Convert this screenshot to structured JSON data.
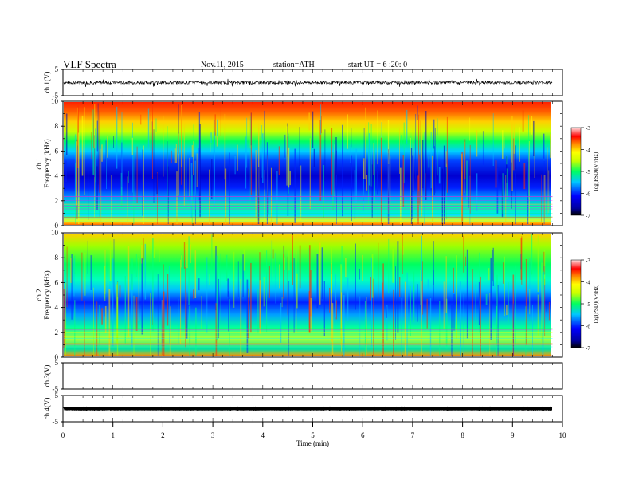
{
  "header": {
    "title": "VLF Spectra",
    "date": "Nov.11, 2015",
    "station": "station=ATH",
    "start": "start  UT =   6  :20: 0"
  },
  "chart_data": [
    {
      "type": "line",
      "name": "ch1-waveform",
      "ylabel": "ch.1(V)",
      "ylim": [
        -5,
        5
      ],
      "y_ticks": [
        "5",
        "-5"
      ],
      "x_range": [
        0,
        10
      ],
      "data_end": 9.8,
      "baseline": 0,
      "description_level": "noisy waveform around 0 V with spikes up to about ±1.5 V"
    },
    {
      "type": "heatmap",
      "name": "ch1-spectrogram",
      "ylabel_line1": "ch.1",
      "ylabel_line2": "Frequency (kHz)",
      "ylim": [
        0,
        10
      ],
      "y_ticks": [
        "0",
        "2",
        "4",
        "6",
        "8",
        "10"
      ],
      "x_range": [
        0,
        10
      ],
      "data_end": 9.8,
      "colorbar": {
        "label": "log(PSD)(V²/Hz)",
        "ticks": [
          "-3",
          "-4",
          "-5",
          "-6",
          "-7"
        ],
        "range": [
          -7,
          -3
        ]
      }
    },
    {
      "type": "heatmap",
      "name": "ch2-spectrogram",
      "ylabel_line1": "ch.2",
      "ylabel_line2": "Frequency (kHz)",
      "ylim": [
        0,
        10
      ],
      "y_ticks": [
        "0",
        "2",
        "4",
        "6",
        "8",
        "10"
      ],
      "x_range": [
        0,
        10
      ],
      "data_end": 9.8,
      "colorbar": {
        "label": "log(PSD)(V²/Hz)",
        "ticks": [
          "-3",
          "-4",
          "-5",
          "-6",
          "-7"
        ],
        "range": [
          -7,
          -3
        ]
      }
    },
    {
      "type": "line",
      "name": "ch3-waveform",
      "ylabel": "ch.3(V)",
      "ylim": [
        -5,
        5
      ],
      "y_ticks": [
        "5",
        "-5"
      ],
      "x_range": [
        0,
        10
      ],
      "data_end": 9.8,
      "baseline": 0
    },
    {
      "type": "line",
      "name": "ch4-waveform",
      "ylabel": "ch.4(V)",
      "ylim": [
        -5,
        5
      ],
      "y_ticks": [
        "5",
        "-5"
      ],
      "x_range": [
        0,
        10
      ],
      "data_end": 9.8,
      "baseline": 0
    }
  ],
  "x_axis": {
    "label": "Time  (min)",
    "ticks": [
      "0",
      "1",
      "2",
      "3",
      "4",
      "5",
      "6",
      "7",
      "8",
      "9",
      "10"
    ],
    "range": [
      0,
      10
    ]
  }
}
